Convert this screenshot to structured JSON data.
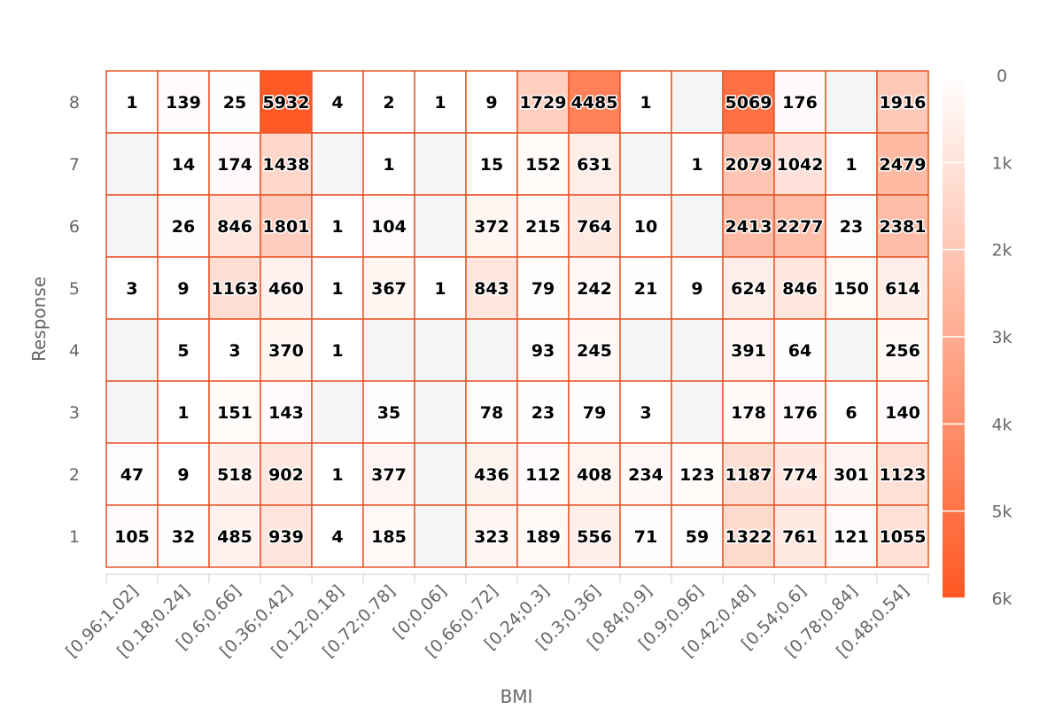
{
  "chart_data": {
    "type": "heatmap",
    "xlabel": "BMI",
    "ylabel": "Response",
    "x_categories": [
      "[0.96;1.02]",
      "[0.18;0.24]",
      "[0.6;0.66]",
      "[0.36;0.42]",
      "[0.12;0.18]",
      "[0.72;0.78]",
      "[0;0.06]",
      "[0.66;0.72]",
      "[0.24;0.3]",
      "[0.3;0.36]",
      "[0.84;0.9]",
      "[0.9;0.96]",
      "[0.42;0.48]",
      "[0.54;0.6]",
      "[0.78;0.84]",
      "[0.48;0.54]"
    ],
    "y_categories": [
      "8",
      "7",
      "6",
      "5",
      "4",
      "3",
      "2",
      "1"
    ],
    "values": [
      [
        1,
        139,
        25,
        5932,
        4,
        2,
        1,
        9,
        1729,
        4485,
        1,
        null,
        5069,
        176,
        null,
        1916
      ],
      [
        null,
        14,
        174,
        1438,
        null,
        1,
        null,
        15,
        152,
        631,
        null,
        1,
        2079,
        1042,
        1,
        2479
      ],
      [
        null,
        26,
        846,
        1801,
        1,
        104,
        null,
        372,
        215,
        764,
        10,
        null,
        2413,
        2277,
        23,
        2381
      ],
      [
        3,
        9,
        1163,
        460,
        1,
        367,
        1,
        843,
        79,
        242,
        21,
        9,
        624,
        846,
        150,
        614
      ],
      [
        null,
        5,
        3,
        370,
        1,
        null,
        null,
        null,
        93,
        245,
        null,
        null,
        391,
        64,
        null,
        256
      ],
      [
        null,
        1,
        151,
        143,
        null,
        35,
        null,
        78,
        23,
        79,
        3,
        null,
        178,
        176,
        6,
        140
      ],
      [
        47,
        9,
        518,
        902,
        1,
        377,
        null,
        436,
        112,
        408,
        234,
        123,
        1187,
        774,
        301,
        1123
      ],
      [
        105,
        32,
        485,
        939,
        4,
        185,
        null,
        323,
        189,
        556,
        71,
        59,
        1322,
        761,
        121,
        1055
      ]
    ],
    "color_scale": {
      "min": 0,
      "max": 6000,
      "low_color": "#ffffff",
      "high_color": "#ff5722",
      "ticks": [
        "0",
        "1k",
        "2k",
        "3k",
        "4k",
        "5k",
        "6k"
      ]
    },
    "empty_cell_color": "#f5f5f5",
    "cell_border_color": "#e8572a"
  }
}
